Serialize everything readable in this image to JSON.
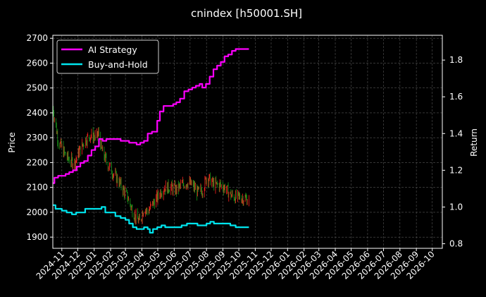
{
  "chart_data": {
    "type": "line",
    "title": "cnindex [h50001.SH]",
    "ylabel_left": "Price",
    "ylabel_right": "Return",
    "grid": true,
    "legend_position": "top-left",
    "background": "#000000",
    "colors": {
      "ai_strategy": "#ff00ff",
      "buy_and_hold": "#00e5ee",
      "candle_up": "#ff2020",
      "candle_down": "#1a9a1a",
      "grid": "#555555",
      "axis": "#ffffff"
    },
    "x_ticks": [
      "2024-11",
      "2024-12",
      "2025-01",
      "2025-02",
      "2025-03",
      "2025-04",
      "2025-05",
      "2025-06",
      "2025-07",
      "2025-08",
      "2025-09",
      "2025-10",
      "2025-11",
      "2025-12",
      "2026-01",
      "2026-02",
      "2026-03",
      "2026-04",
      "2026-05",
      "2026-06",
      "2026-07",
      "2026-08",
      "2026-09",
      "2026-10"
    ],
    "x_range": [
      "2024-10-15",
      "2026-10-20"
    ],
    "y_left_ticks": [
      1900,
      2000,
      2100,
      2200,
      2300,
      2400,
      2500,
      2600,
      2700
    ],
    "y_left_range": [
      1855,
      2712
    ],
    "y_right_ticks": [
      "0.8",
      "1.0",
      "1.2",
      "1.4",
      "1.6",
      "1.8"
    ],
    "y_right_range": [
      0.775,
      1.935
    ],
    "series": [
      {
        "name": "AI Strategy",
        "axis": "right",
        "points": [
          [
            "2024-10-15",
            1.13
          ],
          [
            "2024-10-18",
            1.16
          ],
          [
            "2024-10-25",
            1.17
          ],
          [
            "2024-11-01",
            1.17
          ],
          [
            "2024-11-08",
            1.18
          ],
          [
            "2024-11-15",
            1.19
          ],
          [
            "2024-11-22",
            1.2
          ],
          [
            "2024-11-29",
            1.22
          ],
          [
            "2024-12-06",
            1.24
          ],
          [
            "2024-12-13",
            1.25
          ],
          [
            "2024-12-20",
            1.28
          ],
          [
            "2024-12-27",
            1.31
          ],
          [
            "2025-01-03",
            1.33
          ],
          [
            "2025-01-10",
            1.37
          ],
          [
            "2025-01-17",
            1.36
          ],
          [
            "2025-01-24",
            1.37
          ],
          [
            "2025-02-01",
            1.37
          ],
          [
            "2025-02-10",
            1.37
          ],
          [
            "2025-02-20",
            1.36
          ],
          [
            "2025-03-01",
            1.36
          ],
          [
            "2025-03-08",
            1.35
          ],
          [
            "2025-03-15",
            1.35
          ],
          [
            "2025-03-22",
            1.34
          ],
          [
            "2025-03-29",
            1.35
          ],
          [
            "2025-04-05",
            1.36
          ],
          [
            "2025-04-12",
            1.4
          ],
          [
            "2025-04-20",
            1.41
          ],
          [
            "2025-04-30",
            1.47
          ],
          [
            "2025-05-05",
            1.52
          ],
          [
            "2025-05-12",
            1.55
          ],
          [
            "2025-05-20",
            1.55
          ],
          [
            "2025-05-30",
            1.56
          ],
          [
            "2025-06-05",
            1.57
          ],
          [
            "2025-06-12",
            1.59
          ],
          [
            "2025-06-20",
            1.63
          ],
          [
            "2025-06-28",
            1.64
          ],
          [
            "2025-07-05",
            1.65
          ],
          [
            "2025-07-12",
            1.66
          ],
          [
            "2025-07-19",
            1.67
          ],
          [
            "2025-07-24",
            1.65
          ],
          [
            "2025-07-31",
            1.67
          ],
          [
            "2025-08-07",
            1.71
          ],
          [
            "2025-08-14",
            1.75
          ],
          [
            "2025-08-21",
            1.77
          ],
          [
            "2025-08-28",
            1.79
          ],
          [
            "2025-09-04",
            1.82
          ],
          [
            "2025-09-11",
            1.83
          ],
          [
            "2025-09-18",
            1.85
          ],
          [
            "2025-09-25",
            1.86
          ],
          [
            "2025-10-05",
            1.86
          ],
          [
            "2025-10-20",
            1.86
          ]
        ]
      },
      {
        "name": "Buy-and-Hold",
        "axis": "right",
        "points": [
          [
            "2024-10-15",
            1.01
          ],
          [
            "2024-10-20",
            0.99
          ],
          [
            "2024-11-01",
            0.98
          ],
          [
            "2024-11-10",
            0.97
          ],
          [
            "2024-11-20",
            0.96
          ],
          [
            "2024-11-28",
            0.97
          ],
          [
            "2024-12-05",
            0.97
          ],
          [
            "2024-12-15",
            0.99
          ],
          [
            "2024-12-25",
            0.99
          ],
          [
            "2025-01-05",
            0.99
          ],
          [
            "2025-01-15",
            1.0
          ],
          [
            "2025-01-22",
            0.97
          ],
          [
            "2025-01-30",
            0.97
          ],
          [
            "2025-02-10",
            0.95
          ],
          [
            "2025-02-20",
            0.94
          ],
          [
            "2025-03-01",
            0.93
          ],
          [
            "2025-03-08",
            0.91
          ],
          [
            "2025-03-15",
            0.89
          ],
          [
            "2025-03-22",
            0.88
          ],
          [
            "2025-03-29",
            0.88
          ],
          [
            "2025-04-05",
            0.89
          ],
          [
            "2025-04-12",
            0.88
          ],
          [
            "2025-04-16",
            0.86
          ],
          [
            "2025-04-22",
            0.88
          ],
          [
            "2025-04-30",
            0.89
          ],
          [
            "2025-05-08",
            0.9
          ],
          [
            "2025-05-15",
            0.89
          ],
          [
            "2025-05-25",
            0.89
          ],
          [
            "2025-06-05",
            0.89
          ],
          [
            "2025-06-15",
            0.9
          ],
          [
            "2025-06-25",
            0.91
          ],
          [
            "2025-07-05",
            0.91
          ],
          [
            "2025-07-15",
            0.9
          ],
          [
            "2025-07-25",
            0.9
          ],
          [
            "2025-08-01",
            0.91
          ],
          [
            "2025-08-08",
            0.92
          ],
          [
            "2025-08-15",
            0.91
          ],
          [
            "2025-08-25",
            0.91
          ],
          [
            "2025-09-05",
            0.91
          ],
          [
            "2025-09-15",
            0.9
          ],
          [
            "2025-09-25",
            0.89
          ],
          [
            "2025-10-05",
            0.89
          ],
          [
            "2025-10-20",
            0.89
          ]
        ]
      }
    ],
    "price_path": [
      [
        "2024-10-15",
        2420
      ],
      [
        "2024-10-25",
        2290
      ],
      [
        "2024-11-05",
        2240
      ],
      [
        "2024-11-15",
        2210
      ],
      [
        "2024-11-25",
        2200
      ],
      [
        "2024-12-05",
        2250
      ],
      [
        "2024-12-15",
        2290
      ],
      [
        "2024-12-25",
        2310
      ],
      [
        "2025-01-05",
        2300
      ],
      [
        "2025-01-10",
        2320
      ],
      [
        "2025-01-15",
        2250
      ],
      [
        "2025-01-25",
        2200
      ],
      [
        "2025-02-05",
        2160
      ],
      [
        "2025-02-15",
        2130
      ],
      [
        "2025-02-25",
        2090
      ],
      [
        "2025-03-05",
        2060
      ],
      [
        "2025-03-12",
        2020
      ],
      [
        "2025-03-20",
        1980
      ],
      [
        "2025-03-28",
        1960
      ],
      [
        "2025-04-05",
        2020
      ],
      [
        "2025-04-12",
        2000
      ],
      [
        "2025-04-20",
        2030
      ],
      [
        "2025-04-28",
        2050
      ],
      [
        "2025-05-05",
        2080
      ],
      [
        "2025-05-15",
        2100
      ],
      [
        "2025-05-25",
        2100
      ],
      [
        "2025-06-05",
        2090
      ],
      [
        "2025-06-15",
        2110
      ],
      [
        "2025-06-25",
        2120
      ],
      [
        "2025-07-05",
        2110
      ],
      [
        "2025-07-15",
        2080
      ],
      [
        "2025-07-25",
        2090
      ],
      [
        "2025-08-01",
        2140
      ],
      [
        "2025-08-08",
        2130
      ],
      [
        "2025-08-15",
        2110
      ],
      [
        "2025-08-25",
        2110
      ],
      [
        "2025-09-05",
        2100
      ],
      [
        "2025-09-15",
        2070
      ],
      [
        "2025-09-25",
        2060
      ],
      [
        "2025-10-05",
        2060
      ],
      [
        "2025-10-20",
        2050
      ]
    ],
    "price_candles_end": "2025-10-20"
  }
}
